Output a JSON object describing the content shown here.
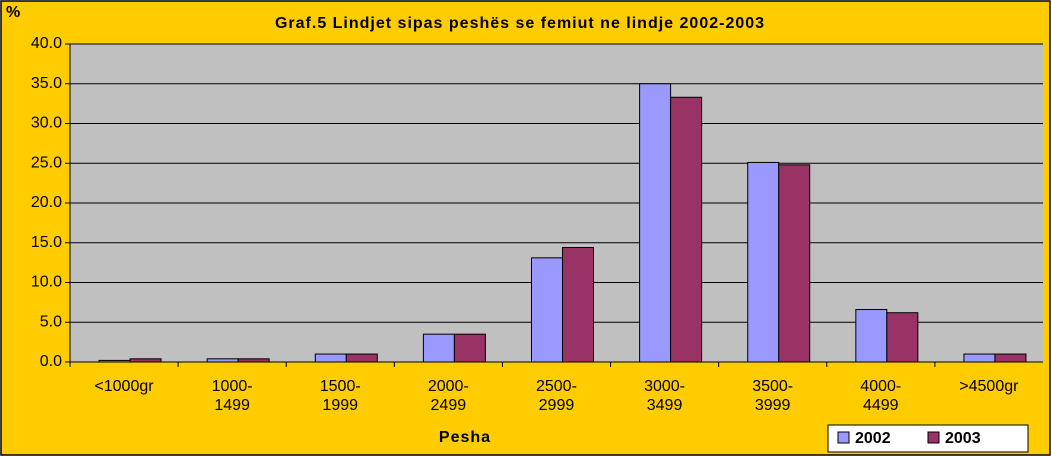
{
  "chart_data": {
    "type": "bar",
    "title": "Graf.5   Lindjet sipas peshës se femiut ne lindje   2002-2003",
    "y_label": "%",
    "x_label": "Pesha",
    "categories": [
      "<1000gr",
      "1000-\n1499",
      "1500-\n1999",
      "2000-\n2499",
      "2500-\n2999",
      "3000-\n3499",
      "3500-\n3999",
      "4000-\n4499",
      ">4500gr"
    ],
    "series": [
      {
        "name": "2002",
        "color": "#9999FF",
        "values": [
          0.2,
          0.4,
          1.0,
          3.5,
          13.1,
          35.0,
          25.1,
          6.6,
          1.0
        ]
      },
      {
        "name": "2003",
        "color": "#993366",
        "values": [
          0.4,
          0.4,
          1.0,
          3.5,
          14.4,
          33.3,
          24.8,
          6.2,
          1.0
        ]
      }
    ],
    "ylim": [
      0,
      40
    ],
    "yticks": [
      {
        "value": 0,
        "label": "0.0"
      },
      {
        "value": 5,
        "label": "5.0"
      },
      {
        "value": 10,
        "label": "10.0"
      },
      {
        "value": 15,
        "label": "15.0"
      },
      {
        "value": 20,
        "label": "20.0"
      },
      {
        "value": 25,
        "label": "25.0"
      },
      {
        "value": 30,
        "label": "30.0"
      },
      {
        "value": 35,
        "label": "35.0"
      },
      {
        "value": 40,
        "label": "40.0"
      }
    ],
    "grid": true,
    "legend": "bottom-right"
  }
}
